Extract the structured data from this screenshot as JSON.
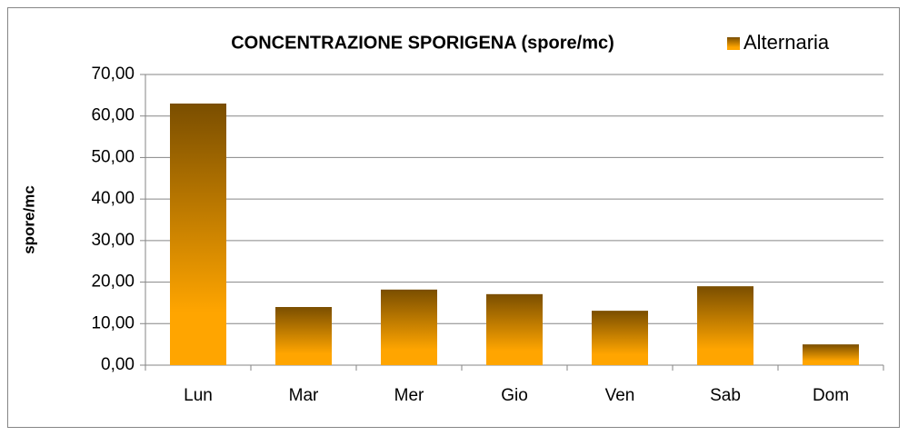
{
  "chart_data": {
    "type": "bar",
    "title": "CONCENTRAZIONE SPORIGENA (spore/mc)",
    "y_label": "spore/mc",
    "categories": [
      "Lun",
      "Mar",
      "Mer",
      "Gio",
      "Ven",
      "Sab",
      "Dom"
    ],
    "series": [
      {
        "name": "Alternaria",
        "color": "#ffa500",
        "values": [
          63.0,
          14.0,
          18.2,
          17.1,
          13.1,
          19.0,
          5.0
        ]
      }
    ],
    "ylim": [
      0,
      70
    ],
    "yticks": [
      {
        "value": 0,
        "label": "0,00"
      },
      {
        "value": 10,
        "label": "10,00"
      },
      {
        "value": 20,
        "label": "20,00"
      },
      {
        "value": 30,
        "label": "30,00"
      },
      {
        "value": 40,
        "label": "40,00"
      },
      {
        "value": 50,
        "label": "50,00"
      },
      {
        "value": 60,
        "label": "60,00"
      },
      {
        "value": 70,
        "label": "70,00"
      }
    ],
    "grid": true,
    "legend": "top-right"
  }
}
